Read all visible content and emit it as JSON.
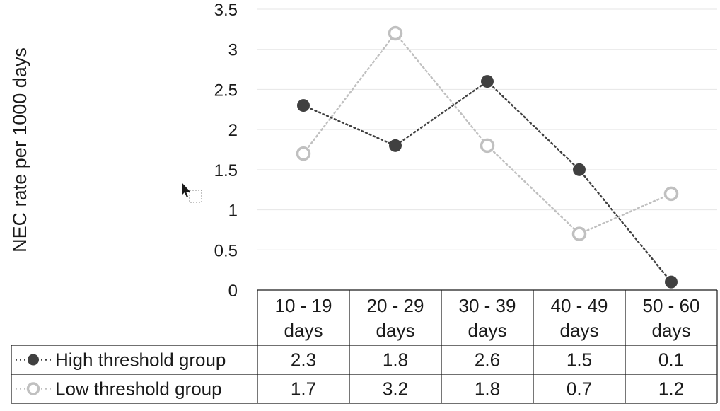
{
  "chart_data": {
    "type": "line",
    "categories_line1": [
      "10 - 19",
      "20 - 29",
      "30 - 39",
      "40 - 49",
      "50 - 60"
    ],
    "categories_line2": [
      "days",
      "days",
      "days",
      "days",
      "days"
    ],
    "ylabel": "NEC rate per 1000 days",
    "ylim": [
      0,
      3.5
    ],
    "yticks": [
      "0",
      "0.5",
      "1",
      "1.5",
      "2",
      "2.5",
      "3",
      "3.5"
    ],
    "grid": true,
    "legend": "data-table",
    "series": [
      {
        "name": "High threshold group",
        "values": [
          2.3,
          1.8,
          2.6,
          1.5,
          0.1
        ],
        "labels": [
          "2.3",
          "1.8",
          "2.6",
          "1.5",
          "0.1"
        ],
        "color": "#404040",
        "marker": "filled-circle"
      },
      {
        "name": "Low threshold group",
        "values": [
          1.7,
          3.2,
          1.8,
          0.7,
          1.2
        ],
        "labels": [
          "1.7",
          "3.2",
          "1.8",
          "0.7",
          "1.2"
        ],
        "color": "#c0c0c0",
        "marker": "hollow-circle"
      }
    ]
  }
}
